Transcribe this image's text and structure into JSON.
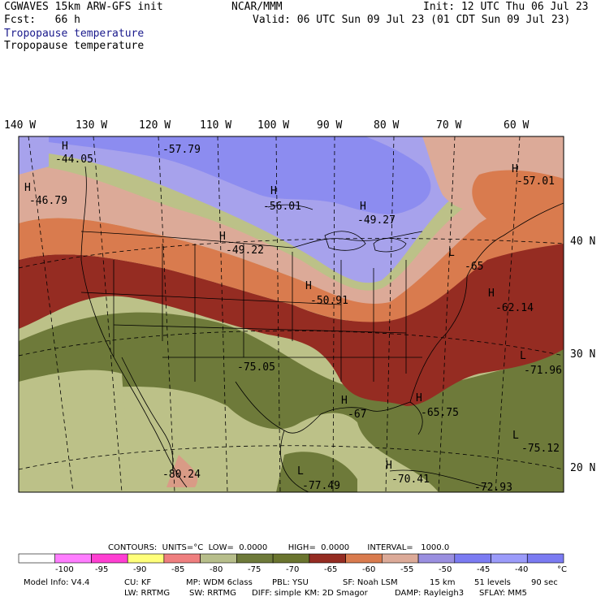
{
  "header": {
    "model": "CGWAVES 15km ARW-GFS init",
    "fcst": "Fcst:   66 h",
    "org": "NCAR/MMM",
    "init": "Init: 12 UTC Thu 06 Jul 23",
    "valid": "Valid: 06 UTC Sun 09 Jul 23 (01 CDT Sun 09 Jul 23)",
    "field1": "Tropopause temperature",
    "field2": "Tropopause temperature"
  },
  "lon_labels": [
    "140 W",
    "130 W",
    "120 W",
    "110 W",
    "100 W",
    "90 W",
    "80 W",
    "70 W",
    "60 W"
  ],
  "lat_labels": [
    "40 N",
    "30 N",
    "20 N"
  ],
  "extrema": [
    {
      "sym": "H",
      "val": "-44.05"
    },
    {
      "sym": "",
      "val": "-57.79"
    },
    {
      "sym": "H",
      "val": "-46.79"
    },
    {
      "sym": "H",
      "val": "-56.01"
    },
    {
      "sym": "H",
      "val": "-49.27"
    },
    {
      "sym": "H",
      "val": "-57.01"
    },
    {
      "sym": "H",
      "val": "-49.22"
    },
    {
      "sym": "L",
      "val": "-65"
    },
    {
      "sym": "H",
      "val": "-50.91"
    },
    {
      "sym": "H",
      "val": "-62.14"
    },
    {
      "sym": "L",
      "val": "-71.96"
    },
    {
      "sym": "",
      "val": "-75.05"
    },
    {
      "sym": "H",
      "val": "-67"
    },
    {
      "sym": "H",
      "val": "-65.75"
    },
    {
      "sym": "L",
      "val": "-75.12"
    },
    {
      "sym": "",
      "val": "-80.24"
    },
    {
      "sym": "L",
      "val": "-77.49"
    },
    {
      "sym": "H",
      "val": "-70.41"
    },
    {
      "sym": "",
      "val": "-72.93"
    }
  ],
  "contours": {
    "text": "CONTOURS:  UNITS=°C  LOW=  0.0000        HIGH=  0.0000       INTERVAL=   1000.0"
  },
  "colorbar": {
    "colors": [
      "#ffffff",
      "#ff7dff",
      "#ff3fd2",
      "#ffff7a",
      "#ef7f7f",
      "#b7be8b",
      "#6e7a3a",
      "#6a742e",
      "#952c22",
      "#d97b4e",
      "#dcaa98",
      "#9a8fe0",
      "#7b7bf2",
      "#9b9bfa",
      "#7b7bf2"
    ],
    "labels": [
      "-100",
      "-95",
      "-90",
      "-85",
      "-80",
      "-75",
      "-70",
      "-65",
      "-60",
      "-55",
      "-50",
      "-45",
      "-40",
      "°C"
    ]
  },
  "footer": {
    "line1": [
      "Model Info: V4.4",
      "CU: KF",
      "MP: WDM 6class",
      "PBL: YSU",
      "SF: Noah LSM",
      "15 km",
      "51 levels",
      "90 sec"
    ],
    "line2": [
      "LW: RRTMG",
      "SW: RRTMG",
      "DIFF: simple",
      "KM: 2D Smagor",
      "DAMP: Rayleigh3",
      "SFLAY: MM5"
    ]
  },
  "colors": {
    "purple": "#a7a2ec",
    "blue": "#8c8cf0",
    "pink": "#dcaa98",
    "orange": "#d97b4e",
    "red": "#952c22",
    "olive": "#6e7a3a",
    "khaki": "#bcc188"
  }
}
